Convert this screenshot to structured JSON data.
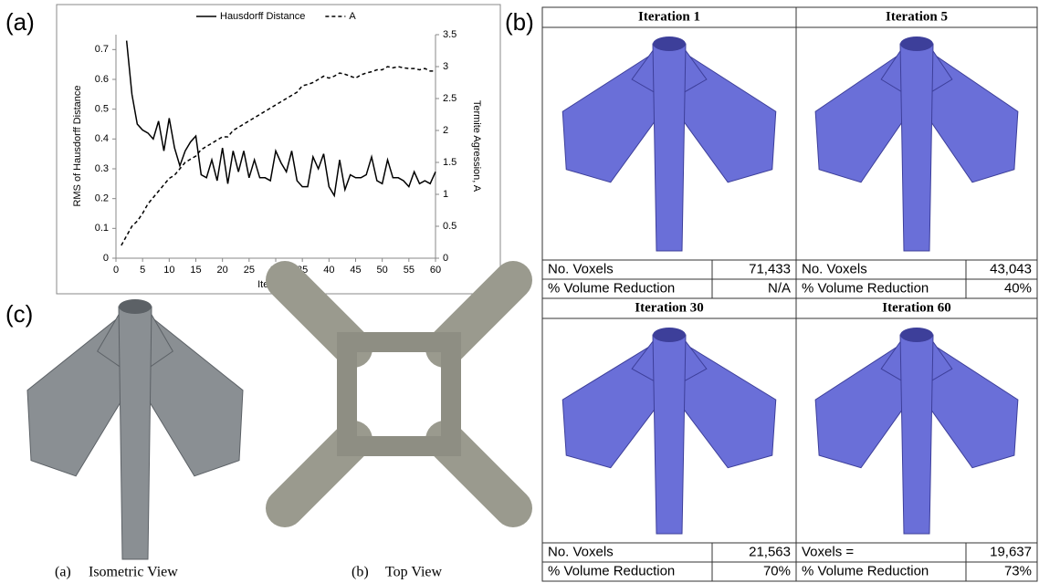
{
  "panel_labels": [
    "(a)",
    "(b)",
    "(c)"
  ],
  "chart_data": {
    "type": "line",
    "legend": "top",
    "xlabel": "Iteration",
    "ylabel": "RMS of Hausdorff Distance",
    "y2label": "Termite Agression, A",
    "x": [
      1,
      2,
      3,
      4,
      5,
      6,
      7,
      8,
      9,
      10,
      11,
      12,
      13,
      14,
      15,
      16,
      17,
      18,
      19,
      20,
      21,
      22,
      23,
      24,
      25,
      26,
      27,
      28,
      29,
      30,
      31,
      32,
      33,
      34,
      35,
      36,
      37,
      38,
      39,
      40,
      41,
      42,
      43,
      44,
      45,
      46,
      47,
      48,
      49,
      50,
      51,
      52,
      53,
      54,
      55,
      56,
      57,
      58,
      59,
      60
    ],
    "xlim": [
      0,
      60
    ],
    "xticks": [
      0,
      5,
      10,
      15,
      20,
      25,
      30,
      35,
      40,
      45,
      50,
      55,
      60
    ],
    "ylim": [
      0,
      0.75
    ],
    "yticks": [
      0,
      0.1,
      0.2,
      0.3,
      0.4,
      0.5,
      0.6,
      0.7
    ],
    "y2lim": [
      0,
      3.5
    ],
    "y2ticks": [
      0,
      0.5,
      1,
      1.5,
      2,
      2.5,
      3,
      3.5
    ],
    "series": [
      {
        "name": "Hausdorff Distance",
        "color": "#000000",
        "dash": "solid",
        "values": [
          null,
          0.73,
          0.55,
          0.45,
          0.43,
          0.42,
          0.4,
          0.46,
          0.36,
          0.47,
          0.37,
          0.31,
          0.36,
          0.39,
          0.41,
          0.28,
          0.27,
          0.33,
          0.26,
          0.37,
          0.25,
          0.36,
          0.29,
          0.36,
          0.27,
          0.33,
          0.27,
          0.27,
          0.26,
          0.36,
          0.32,
          0.29,
          0.36,
          0.26,
          0.24,
          0.24,
          0.34,
          0.3,
          0.35,
          0.24,
          0.21,
          0.33,
          0.23,
          0.28,
          0.27,
          0.27,
          0.28,
          0.34,
          0.26,
          0.25,
          0.33,
          0.27,
          0.27,
          0.26,
          0.24,
          0.29,
          0.25,
          0.26,
          0.25,
          0.29
        ]
      },
      {
        "name": "A",
        "color": "#000000",
        "dash": "dashed",
        "axis": "y2",
        "values": [
          0.2,
          0.35,
          0.5,
          0.58,
          0.7,
          0.85,
          0.95,
          1.05,
          1.15,
          1.25,
          1.3,
          1.4,
          1.5,
          1.55,
          1.6,
          1.7,
          1.75,
          1.8,
          1.85,
          1.9,
          1.9,
          2.0,
          2.05,
          2.1,
          2.15,
          2.2,
          2.25,
          2.3,
          2.35,
          2.4,
          2.45,
          2.5,
          2.55,
          2.6,
          2.7,
          2.72,
          2.75,
          2.8,
          2.85,
          2.82,
          2.85,
          2.9,
          2.88,
          2.85,
          2.82,
          2.87,
          2.9,
          2.92,
          2.95,
          2.95,
          3.0,
          2.98,
          3.0,
          2.98,
          2.97,
          2.97,
          2.95,
          2.97,
          2.93,
          2.93
        ]
      }
    ]
  },
  "renders": [
    {
      "title": "Iteration 1",
      "rows": [
        [
          "No. Voxels",
          "71,433"
        ],
        [
          "% Volume Reduction",
          "N/A"
        ]
      ]
    },
    {
      "title": "Iteration 5",
      "rows": [
        [
          "No. Voxels",
          "43,043"
        ],
        [
          "% Volume Reduction",
          "40%"
        ]
      ]
    },
    {
      "title": "Iteration 30",
      "rows": [
        [
          "No. Voxels",
          "21,563"
        ],
        [
          "% Volume Reduction",
          "70%"
        ]
      ]
    },
    {
      "title": "Iteration 60",
      "rows": [
        [
          "Voxels =",
          "19,637"
        ],
        [
          "% Volume Reduction",
          "73%"
        ]
      ]
    }
  ],
  "photo_captions": [
    {
      "label": "(a)",
      "text": "Isometric View"
    },
    {
      "label": "(b)",
      "text": "Top View"
    }
  ]
}
